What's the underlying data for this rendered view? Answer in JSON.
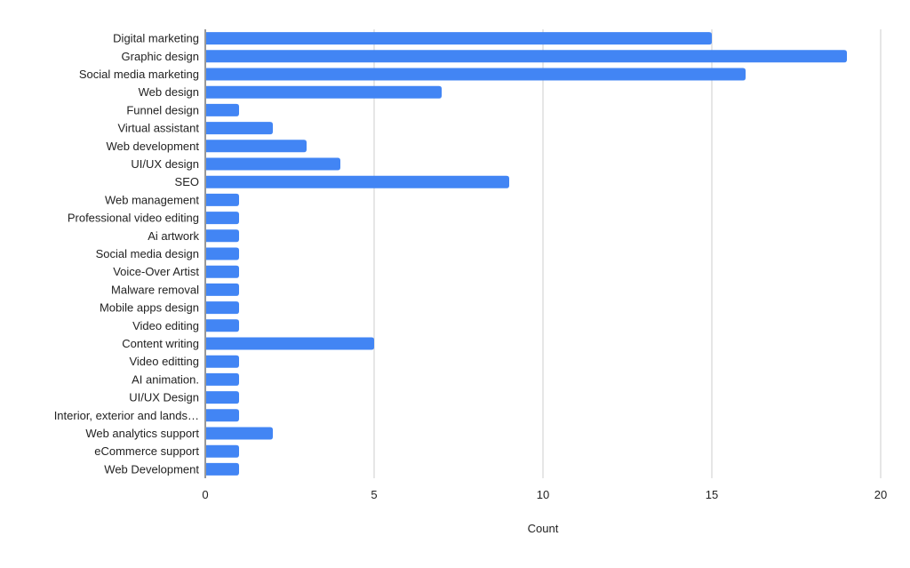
{
  "chart_data": {
    "type": "bar",
    "orientation": "horizontal",
    "title": "",
    "xlabel": "Count",
    "ylabel": "",
    "xlim": [
      0,
      20
    ],
    "x_ticks": [
      "0",
      "5",
      "10",
      "15",
      "20"
    ],
    "grid": true,
    "legend": "none",
    "bar_color": "#4285f4",
    "categories": [
      "Digital marketing",
      "Graphic design",
      "Social media marketing",
      "Web design",
      "Funnel design",
      "Virtual assistant",
      "Web development",
      "UI/UX design",
      "SEO",
      "Web management",
      "Professional video editing",
      "Ai artwork",
      "Social media design",
      "Voice-Over Artist",
      "Malware removal",
      "Mobile apps design",
      "Video editing",
      "Content writing",
      "Video editting",
      "AI animation.",
      "UI/UX Design",
      "Interior, exterior and lands…",
      "Web analytics support",
      "eCommerce support",
      "Web Development"
    ],
    "values": [
      15,
      19,
      16,
      7,
      1,
      2,
      3,
      4,
      9,
      1,
      1,
      1,
      1,
      1,
      1,
      1,
      1,
      5,
      1,
      1,
      1,
      1,
      2,
      1,
      1
    ]
  }
}
